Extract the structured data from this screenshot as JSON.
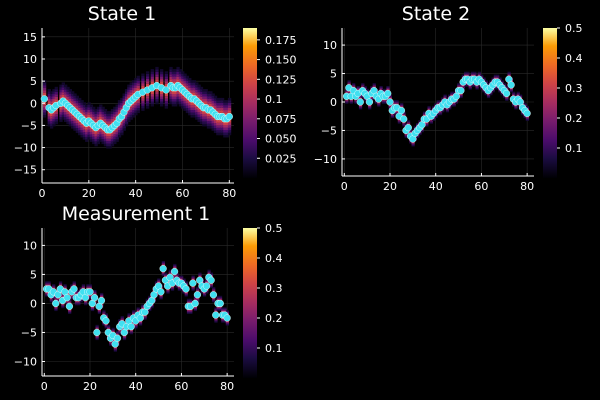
{
  "chart_data": [
    {
      "type": "heatmap",
      "title": "State 1",
      "xlabel": "",
      "ylabel": "",
      "xlim": [
        0,
        82
      ],
      "ylim": [
        -18,
        17
      ],
      "xticks": [
        0,
        20,
        40,
        60,
        80
      ],
      "yticks": [
        -15,
        -10,
        -5,
        0,
        5,
        10,
        15
      ],
      "grid": true,
      "colorbar": {
        "range": [
          0,
          0.19
        ],
        "ticks": [
          0.025,
          0.05,
          0.075,
          0.1,
          0.125,
          0.15,
          0.175
        ],
        "colormap": "inferno"
      },
      "band_spread": 4.5,
      "heat_peak": 0.14,
      "points": {
        "color": "#40E0F0",
        "x": [
          1,
          3,
          4,
          5,
          6,
          8,
          9,
          10,
          11,
          12,
          13,
          14,
          15,
          16,
          17,
          18,
          19,
          20,
          21,
          22,
          23,
          24,
          25,
          26,
          27,
          28,
          29,
          30,
          31,
          32,
          33,
          34,
          35,
          36,
          37,
          38,
          39,
          40,
          41,
          43,
          45,
          47,
          49,
          51,
          53,
          55,
          56,
          57,
          58,
          59,
          60,
          61,
          62,
          63,
          64,
          65,
          66,
          67,
          68,
          69,
          70,
          71,
          72,
          73,
          74,
          75,
          76,
          77,
          78,
          79,
          80
        ],
        "y": [
          1,
          -1,
          -1.5,
          -1,
          -0.5,
          0,
          0.5,
          0,
          -0.5,
          -1,
          -1.5,
          -2,
          -2.5,
          -3,
          -3.5,
          -4,
          -4.5,
          -4,
          -4.5,
          -5,
          -5.5,
          -5,
          -4.5,
          -5,
          -5.5,
          -6,
          -6,
          -5.5,
          -5,
          -4.5,
          -3.5,
          -3,
          -2,
          -1,
          0,
          0.5,
          1,
          1.5,
          2,
          2.5,
          3,
          3.5,
          4,
          3.5,
          3,
          4,
          3.5,
          3.5,
          4,
          3.5,
          3,
          2.5,
          2,
          1.5,
          1,
          1,
          0.5,
          0,
          -0.5,
          -1,
          -1,
          -1.5,
          -1.5,
          -2,
          -2.5,
          -3,
          -3,
          -3,
          -3.5,
          -3.5,
          -3
        ]
      }
    },
    {
      "type": "heatmap",
      "title": "State 2",
      "xlabel": "",
      "ylabel": "",
      "xlim": [
        -1,
        83
      ],
      "ylim": [
        -13,
        13
      ],
      "xticks": [
        0,
        20,
        40,
        60,
        80
      ],
      "yticks": [
        -10,
        -5,
        0,
        5,
        10
      ],
      "grid": true,
      "colorbar": {
        "range": [
          0,
          0.5
        ],
        "ticks": [
          0.1,
          0.2,
          0.3,
          0.4,
          0.5
        ],
        "colormap": "inferno"
      },
      "band_spread": 1.4,
      "heat_peak": 0.48,
      "points": {
        "color": "#40E0F0",
        "x": [
          1,
          2,
          3,
          4,
          5,
          6,
          7,
          8,
          9,
          10,
          11,
          12,
          13,
          14,
          15,
          16,
          17,
          18,
          19,
          20,
          21,
          22,
          23,
          24,
          25,
          26,
          27,
          28,
          29,
          30,
          31,
          32,
          33,
          34,
          35,
          36,
          37,
          38,
          39,
          40,
          41,
          42,
          43,
          44,
          45,
          46,
          47,
          48,
          49,
          50,
          51,
          52,
          53,
          54,
          55,
          56,
          57,
          58,
          59,
          60,
          61,
          62,
          63,
          64,
          65,
          66,
          67,
          68,
          69,
          70,
          71,
          72,
          73,
          74,
          75,
          76,
          77,
          78,
          79,
          80
        ],
        "y": [
          1,
          2.5,
          1,
          2,
          1,
          1.5,
          0,
          2,
          1.5,
          1,
          0,
          1.5,
          2,
          1,
          0.5,
          1.5,
          1,
          1,
          1.5,
          0,
          -1.5,
          -1,
          -1,
          -2.5,
          -1.5,
          -3,
          -5,
          -4.5,
          -6,
          -6.5,
          -5.5,
          -5,
          -4.5,
          -4,
          -3,
          -3,
          -2,
          -2.5,
          -2,
          -1.5,
          -1,
          -1,
          -0.5,
          0,
          -0.5,
          0,
          0.5,
          0.5,
          1,
          2,
          2,
          3.5,
          4,
          4,
          3.5,
          4,
          4,
          3.5,
          4,
          3.5,
          3,
          2.5,
          2,
          2.5,
          3,
          3.5,
          3.5,
          3,
          2.5,
          2,
          1.5,
          4,
          3,
          0.5,
          0,
          0.5,
          0,
          -1,
          -1.5,
          -2
        ]
      }
    },
    {
      "type": "heatmap",
      "title": "Measurement 1",
      "xlabel": "",
      "ylabel": "",
      "xlim": [
        -1,
        83
      ],
      "ylim": [
        -12.5,
        13
      ],
      "xticks": [
        0,
        20,
        40,
        60,
        80
      ],
      "yticks": [
        -10,
        -5,
        0,
        5,
        10
      ],
      "grid": true,
      "colorbar": {
        "range": [
          0,
          0.5
        ],
        "ticks": [
          0.1,
          0.2,
          0.3,
          0.4,
          0.5
        ],
        "colormap": "inferno"
      },
      "band_spread": 1.4,
      "heat_peak": 0.48,
      "points": {
        "color": "#40E0F0",
        "x": [
          1,
          2,
          3,
          4,
          5,
          6,
          7,
          8,
          9,
          10,
          11,
          12,
          13,
          14,
          15,
          16,
          17,
          18,
          19,
          20,
          21,
          22,
          23,
          24,
          25,
          26,
          27,
          28,
          29,
          30,
          31,
          32,
          33,
          34,
          35,
          36,
          37,
          38,
          39,
          40,
          41,
          42,
          43,
          44,
          45,
          46,
          47,
          48,
          49,
          50,
          51,
          52,
          53,
          54,
          55,
          56,
          57,
          58,
          59,
          60,
          61,
          62,
          63,
          64,
          65,
          66,
          67,
          68,
          69,
          70,
          71,
          72,
          73,
          74,
          75,
          76,
          77,
          78,
          79,
          80
        ],
        "y": [
          2.5,
          2.5,
          1.5,
          2,
          0,
          1.5,
          2.5,
          0.5,
          2,
          1,
          -0.5,
          2,
          2.5,
          1,
          1,
          1.5,
          2,
          1,
          2,
          2,
          0,
          1,
          -5,
          -0.5,
          0.5,
          -2.5,
          -3,
          -5,
          -6,
          -5.5,
          -7,
          -6,
          -4,
          -3.5,
          -5,
          -4,
          -3,
          -4,
          -2.5,
          -3,
          -2,
          -2.5,
          -1.5,
          -1.5,
          -0.5,
          0,
          0.5,
          1.5,
          2.5,
          3,
          2,
          6,
          4,
          3,
          4.5,
          3.5,
          5.5,
          4,
          3.5,
          3.5,
          3,
          2.5,
          -0.5,
          -0.5,
          3.5,
          0,
          1.5,
          4,
          3,
          2.5,
          3,
          4.5,
          4,
          1.5,
          -2,
          0,
          0,
          -2,
          -2,
          -2.5
        ]
      }
    }
  ]
}
